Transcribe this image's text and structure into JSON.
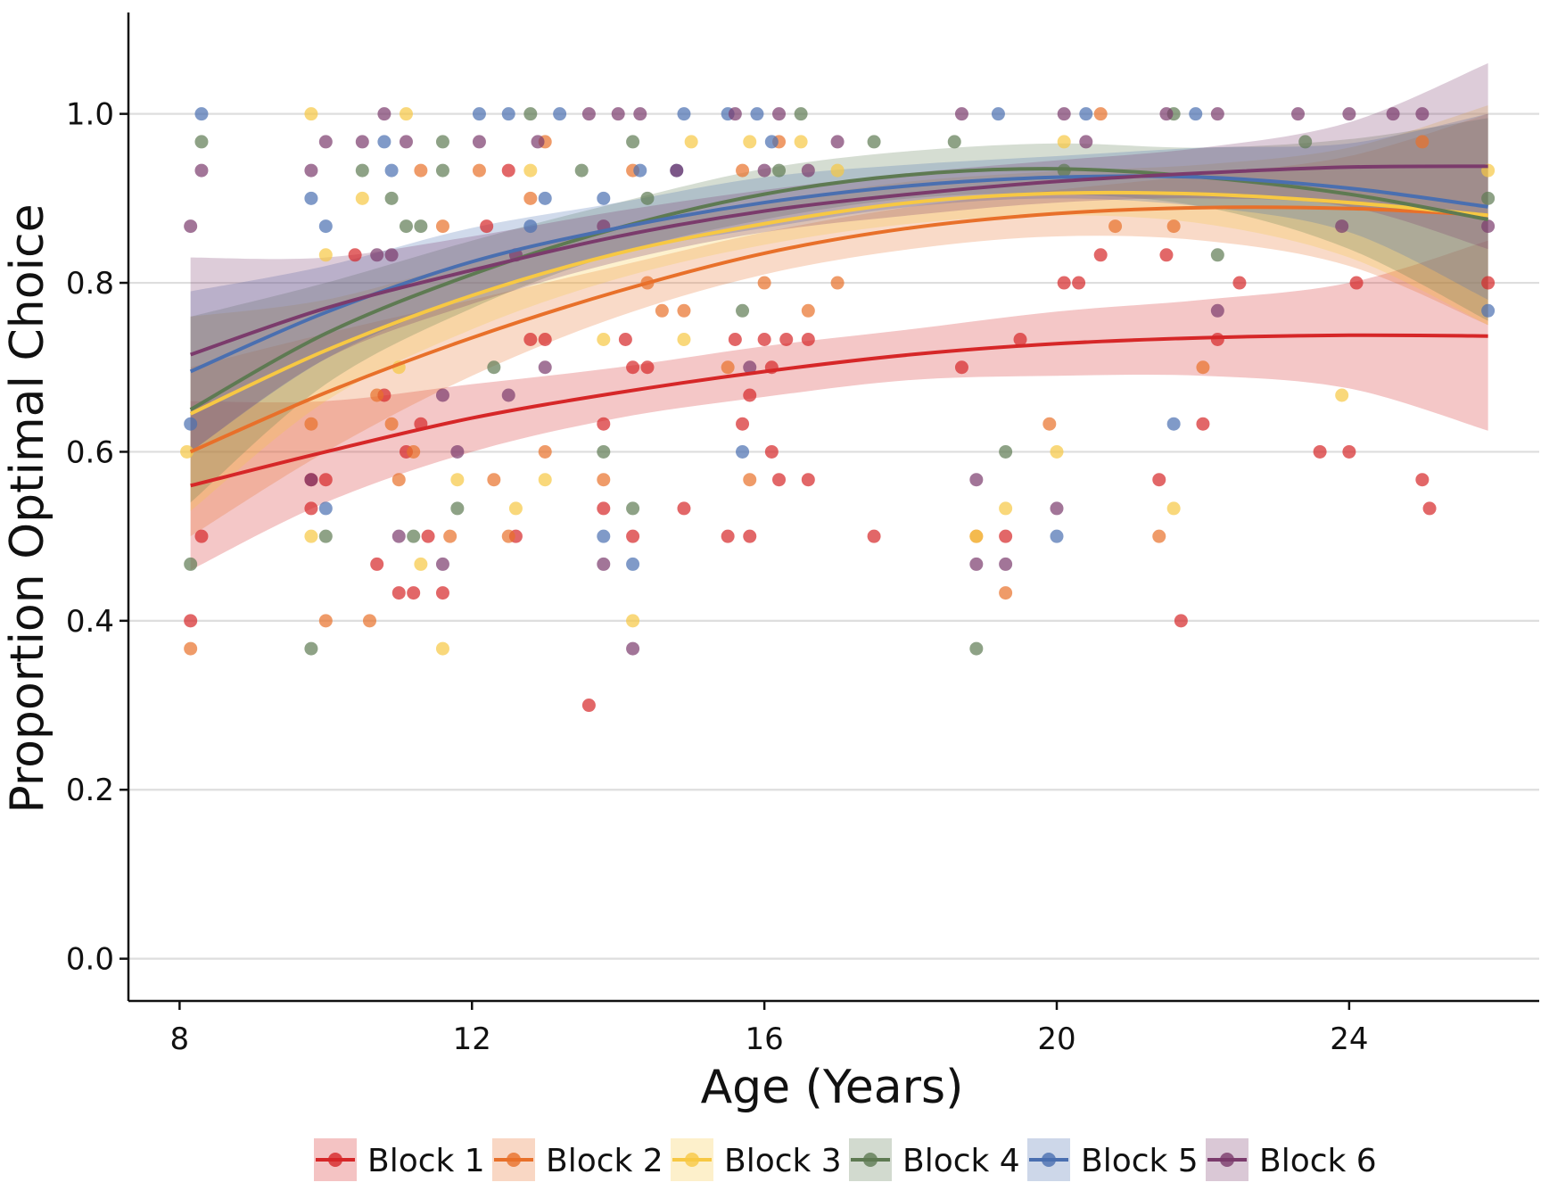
{
  "chart_data": {
    "type": "scatter",
    "title": "",
    "xlabel": "Age (Years)",
    "ylabel": "Proportion Optimal Choice",
    "xlim": [
      7.3,
      26.6
    ],
    "ylim": [
      -0.05,
      1.12
    ],
    "x_ticks": [
      8,
      12,
      16,
      20,
      24
    ],
    "y_ticks": [
      0.0,
      0.2,
      0.4,
      0.6,
      0.8,
      1.0
    ],
    "x_tick_labels": [
      "8",
      "12",
      "16",
      "20",
      "24"
    ],
    "y_tick_labels": [
      "0.0",
      "0.2",
      "0.4",
      "0.6",
      "0.8",
      "1.0"
    ],
    "grid": "horizontal major lines",
    "legend_position": "bottom",
    "fit": "quadratic trend with confidence band",
    "series": [
      {
        "name": "Block 1",
        "color": "#d62728",
        "fit_x": [
          8.15,
          10,
          12,
          14,
          16,
          18,
          20,
          22,
          24,
          25.9
        ],
        "fit_y": [
          0.56,
          0.6,
          0.64,
          0.67,
          0.695,
          0.715,
          0.728,
          0.735,
          0.738,
          0.737
        ],
        "band_lower": [
          0.46,
          0.54,
          0.6,
          0.64,
          0.665,
          0.685,
          0.69,
          0.69,
          0.675,
          0.625
        ],
        "band_upper": [
          0.66,
          0.66,
          0.68,
          0.7,
          0.725,
          0.745,
          0.766,
          0.78,
          0.8,
          0.85
        ],
        "points": [
          [
            8.15,
            0.4
          ],
          [
            8.3,
            0.5
          ],
          [
            9.8,
            0.533
          ],
          [
            9.8,
            0.567
          ],
          [
            10,
            0.567
          ],
          [
            10.4,
            0.833
          ],
          [
            10.7,
            0.467
          ],
          [
            10.8,
            0.667
          ],
          [
            11,
            0.433
          ],
          [
            11.1,
            0.6
          ],
          [
            11.2,
            0.433
          ],
          [
            11.3,
            0.633
          ],
          [
            11.4,
            0.5
          ],
          [
            11.6,
            0.433
          ],
          [
            12.2,
            0.867
          ],
          [
            12.5,
            0.933
          ],
          [
            12.6,
            0.5
          ],
          [
            12.8,
            0.733
          ],
          [
            13.0,
            0.733
          ],
          [
            13.6,
            0.3
          ],
          [
            13.8,
            0.633
          ],
          [
            13.8,
            0.533
          ],
          [
            14.1,
            0.733
          ],
          [
            14.2,
            0.7
          ],
          [
            14.2,
            0.5
          ],
          [
            14.4,
            0.7
          ],
          [
            14.9,
            0.533
          ],
          [
            15.5,
            0.5
          ],
          [
            15.6,
            0.733
          ],
          [
            15.7,
            0.633
          ],
          [
            15.8,
            0.5
          ],
          [
            15.8,
            0.667
          ],
          [
            16.0,
            0.733
          ],
          [
            16.1,
            0.6
          ],
          [
            16.1,
            0.7
          ],
          [
            16.2,
            0.567
          ],
          [
            16.3,
            0.733
          ],
          [
            16.6,
            0.733
          ],
          [
            16.6,
            0.567
          ],
          [
            17.5,
            0.5
          ],
          [
            18.7,
            0.7
          ],
          [
            19.3,
            0.5
          ],
          [
            19.5,
            0.733
          ],
          [
            20.1,
            0.8
          ],
          [
            20.3,
            0.8
          ],
          [
            20.6,
            0.833
          ],
          [
            21.4,
            0.567
          ],
          [
            21.5,
            0.833
          ],
          [
            21.7,
            0.4
          ],
          [
            22.0,
            0.633
          ],
          [
            22.2,
            0.733
          ],
          [
            22.5,
            0.8
          ],
          [
            23.6,
            0.6
          ],
          [
            24.0,
            0.6
          ],
          [
            24.1,
            0.8
          ],
          [
            25.0,
            0.567
          ],
          [
            25.1,
            0.533
          ],
          [
            25.9,
            0.8
          ]
        ]
      },
      {
        "name": "Block 2",
        "color": "#e8702a",
        "fit_x": [
          8.15,
          10,
          12,
          14,
          16,
          18,
          20,
          22,
          24,
          25.9
        ],
        "fit_y": [
          0.6,
          0.67,
          0.735,
          0.79,
          0.835,
          0.865,
          0.882,
          0.889,
          0.888,
          0.88
        ],
        "band_lower": [
          0.5,
          0.6,
          0.69,
          0.76,
          0.81,
          0.84,
          0.855,
          0.85,
          0.82,
          0.75
        ],
        "band_upper": [
          0.7,
          0.74,
          0.78,
          0.82,
          0.86,
          0.89,
          0.91,
          0.928,
          0.95,
          1.0
        ],
        "points": [
          [
            8.15,
            0.367
          ],
          [
            9.8,
            0.633
          ],
          [
            10,
            0.4
          ],
          [
            10.6,
            0.4
          ],
          [
            10.7,
            0.667
          ],
          [
            10.9,
            0.633
          ],
          [
            11.0,
            0.567
          ],
          [
            11.2,
            0.6
          ],
          [
            11.3,
            0.933
          ],
          [
            11.6,
            0.867
          ],
          [
            11.7,
            0.5
          ],
          [
            12.1,
            0.933
          ],
          [
            12.3,
            0.567
          ],
          [
            12.5,
            0.5
          ],
          [
            12.8,
            0.9
          ],
          [
            13.0,
            0.967
          ],
          [
            13.0,
            0.6
          ],
          [
            13.8,
            0.567
          ],
          [
            14.2,
            0.933
          ],
          [
            14.4,
            0.8
          ],
          [
            14.6,
            0.767
          ],
          [
            14.9,
            0.767
          ],
          [
            15.5,
            0.7
          ],
          [
            15.7,
            0.933
          ],
          [
            15.8,
            0.567
          ],
          [
            16.0,
            0.8
          ],
          [
            16.2,
            0.967
          ],
          [
            16.6,
            0.767
          ],
          [
            17.0,
            0.8
          ],
          [
            18.9,
            0.5
          ],
          [
            19.3,
            0.433
          ],
          [
            19.9,
            0.633
          ],
          [
            20.6,
            1.0
          ],
          [
            20.8,
            0.867
          ],
          [
            21.4,
            0.5
          ],
          [
            21.6,
            0.867
          ],
          [
            22.0,
            0.7
          ],
          [
            25.0,
            0.967
          ]
        ]
      },
      {
        "name": "Block 3",
        "color": "#f7c843",
        "fit_x": [
          8.15,
          10,
          12,
          14,
          16,
          18,
          20,
          22,
          24,
          25.9
        ],
        "fit_y": [
          0.645,
          0.72,
          0.785,
          0.835,
          0.87,
          0.895,
          0.906,
          0.905,
          0.895,
          0.88
        ],
        "band_lower": [
          0.53,
          0.66,
          0.745,
          0.805,
          0.845,
          0.87,
          0.88,
          0.87,
          0.83,
          0.75
        ],
        "band_upper": [
          0.76,
          0.78,
          0.825,
          0.865,
          0.895,
          0.92,
          0.932,
          0.94,
          0.96,
          1.01
        ],
        "points": [
          [
            8.1,
            0.6
          ],
          [
            9.8,
            1.0
          ],
          [
            9.8,
            0.5
          ],
          [
            10,
            0.833
          ],
          [
            10.5,
            0.9
          ],
          [
            11.0,
            0.7
          ],
          [
            11.1,
            1.0
          ],
          [
            11.3,
            0.467
          ],
          [
            11.6,
            0.367
          ],
          [
            11.8,
            0.567
          ],
          [
            12.6,
            0.533
          ],
          [
            12.8,
            0.933
          ],
          [
            13.0,
            0.567
          ],
          [
            13.8,
            0.733
          ],
          [
            14.2,
            0.4
          ],
          [
            14.9,
            0.733
          ],
          [
            15.0,
            0.967
          ],
          [
            15.8,
            0.967
          ],
          [
            16.5,
            0.967
          ],
          [
            17.0,
            0.933
          ],
          [
            18.9,
            0.5
          ],
          [
            19.3,
            0.533
          ],
          [
            20.0,
            0.6
          ],
          [
            20.1,
            0.967
          ],
          [
            21.6,
            0.533
          ],
          [
            23.9,
            0.667
          ],
          [
            25.9,
            0.933
          ]
        ]
      },
      {
        "name": "Block 4",
        "color": "#5e7a52",
        "fit_x": [
          8.15,
          10,
          12,
          14,
          16,
          18,
          20,
          22,
          24,
          25.9
        ],
        "fit_y": [
          0.65,
          0.74,
          0.81,
          0.865,
          0.905,
          0.928,
          0.935,
          0.925,
          0.905,
          0.875
        ],
        "band_lower": [
          0.54,
          0.68,
          0.77,
          0.835,
          0.875,
          0.9,
          0.905,
          0.89,
          0.84,
          0.755
        ],
        "band_upper": [
          0.76,
          0.8,
          0.85,
          0.895,
          0.935,
          0.956,
          0.965,
          0.96,
          0.97,
          0.995
        ],
        "points": [
          [
            8.15,
            0.467
          ],
          [
            8.3,
            0.967
          ],
          [
            9.8,
            0.367
          ],
          [
            10.0,
            0.5
          ],
          [
            10.5,
            0.933
          ],
          [
            10.9,
            0.9
          ],
          [
            11.1,
            0.867
          ],
          [
            11.2,
            0.5
          ],
          [
            11.3,
            0.867
          ],
          [
            11.6,
            0.967
          ],
          [
            11.6,
            0.933
          ],
          [
            11.8,
            0.533
          ],
          [
            12.3,
            0.7
          ],
          [
            12.8,
            1.0
          ],
          [
            13.5,
            0.933
          ],
          [
            13.8,
            0.6
          ],
          [
            14.2,
            0.533
          ],
          [
            14.2,
            0.967
          ],
          [
            14.4,
            0.9
          ],
          [
            15.7,
            0.767
          ],
          [
            16.5,
            1.0
          ],
          [
            16.2,
            0.933
          ],
          [
            17.5,
            0.967
          ],
          [
            18.6,
            0.967
          ],
          [
            18.9,
            0.367
          ],
          [
            19.3,
            0.6
          ],
          [
            20.1,
            0.933
          ],
          [
            21.6,
            1.0
          ],
          [
            22.2,
            0.833
          ],
          [
            23.4,
            0.967
          ],
          [
            25.9,
            0.9
          ]
        ]
      },
      {
        "name": "Block 5",
        "color": "#4a6fb0",
        "fit_x": [
          8.15,
          10,
          12,
          14,
          16,
          18,
          20,
          22,
          24,
          25.9
        ],
        "fit_y": [
          0.695,
          0.765,
          0.825,
          0.865,
          0.895,
          0.915,
          0.925,
          0.925,
          0.912,
          0.89
        ],
        "band_lower": [
          0.6,
          0.71,
          0.785,
          0.835,
          0.865,
          0.89,
          0.9,
          0.89,
          0.86,
          0.78
        ],
        "band_upper": [
          0.79,
          0.82,
          0.865,
          0.895,
          0.925,
          0.94,
          0.95,
          0.96,
          0.965,
          1.0
        ],
        "points": [
          [
            8.15,
            0.633
          ],
          [
            8.3,
            1.0
          ],
          [
            9.8,
            0.9
          ],
          [
            10,
            0.867
          ],
          [
            10.0,
            0.533
          ],
          [
            10.8,
            0.967
          ],
          [
            10.9,
            0.933
          ],
          [
            12.1,
            1.0
          ],
          [
            12.5,
            1.0
          ],
          [
            12.8,
            0.867
          ],
          [
            13.0,
            0.9
          ],
          [
            13.2,
            1.0
          ],
          [
            13.8,
            0.9
          ],
          [
            13.8,
            0.5
          ],
          [
            14.2,
            0.467
          ],
          [
            14.3,
            0.933
          ],
          [
            14.8,
            0.933
          ],
          [
            14.9,
            1.0
          ],
          [
            15.5,
            1.0
          ],
          [
            15.7,
            0.6
          ],
          [
            15.9,
            1.0
          ],
          [
            16.1,
            0.967
          ],
          [
            19.2,
            1.0
          ],
          [
            20.0,
            0.5
          ],
          [
            20.4,
            1.0
          ],
          [
            21.6,
            0.633
          ],
          [
            21.9,
            1.0
          ],
          [
            25.9,
            0.767
          ]
        ]
      },
      {
        "name": "Block 6",
        "color": "#7b3b6c",
        "fit_x": [
          8.15,
          10,
          12,
          14,
          16,
          18,
          20,
          22,
          24,
          25.9
        ],
        "fit_y": [
          0.715,
          0.77,
          0.815,
          0.855,
          0.885,
          0.905,
          0.92,
          0.93,
          0.937,
          0.938
        ],
        "band_lower": [
          0.6,
          0.71,
          0.775,
          0.825,
          0.86,
          0.88,
          0.895,
          0.9,
          0.89,
          0.84
        ],
        "band_upper": [
          0.83,
          0.83,
          0.855,
          0.885,
          0.91,
          0.93,
          0.945,
          0.96,
          0.99,
          1.06
        ],
        "points": [
          [
            8.15,
            0.867
          ],
          [
            8.3,
            0.933
          ],
          [
            9.8,
            0.933
          ],
          [
            9.8,
            0.567
          ],
          [
            10,
            0.967
          ],
          [
            10.5,
            0.967
          ],
          [
            10.7,
            0.833
          ],
          [
            10.8,
            1.0
          ],
          [
            10.9,
            0.833
          ],
          [
            11.0,
            0.5
          ],
          [
            11.1,
            0.967
          ],
          [
            11.6,
            0.667
          ],
          [
            11.6,
            0.467
          ],
          [
            11.8,
            0.6
          ],
          [
            12.1,
            0.967
          ],
          [
            12.5,
            0.667
          ],
          [
            12.6,
            0.833
          ],
          [
            12.9,
            0.967
          ],
          [
            13.0,
            0.7
          ],
          [
            13.6,
            1.0
          ],
          [
            13.8,
            0.867
          ],
          [
            13.8,
            0.467
          ],
          [
            14.0,
            1.0
          ],
          [
            14.2,
            0.367
          ],
          [
            14.3,
            1.0
          ],
          [
            14.8,
            0.933
          ],
          [
            15.6,
            1.0
          ],
          [
            15.8,
            0.7
          ],
          [
            16.0,
            0.933
          ],
          [
            16.2,
            1.0
          ],
          [
            16.6,
            0.933
          ],
          [
            17.0,
            0.967
          ],
          [
            18.7,
            1.0
          ],
          [
            18.9,
            0.567
          ],
          [
            18.9,
            0.467
          ],
          [
            19.3,
            0.467
          ],
          [
            20.0,
            0.533
          ],
          [
            20.1,
            1.0
          ],
          [
            20.4,
            0.967
          ],
          [
            21.5,
            1.0
          ],
          [
            22.2,
            0.767
          ],
          [
            22.2,
            1.0
          ],
          [
            23.3,
            1.0
          ],
          [
            23.9,
            0.867
          ],
          [
            24.0,
            1.0
          ],
          [
            24.6,
            1.0
          ],
          [
            25.0,
            1.0
          ],
          [
            25.9,
            0.867
          ]
        ]
      }
    ]
  }
}
